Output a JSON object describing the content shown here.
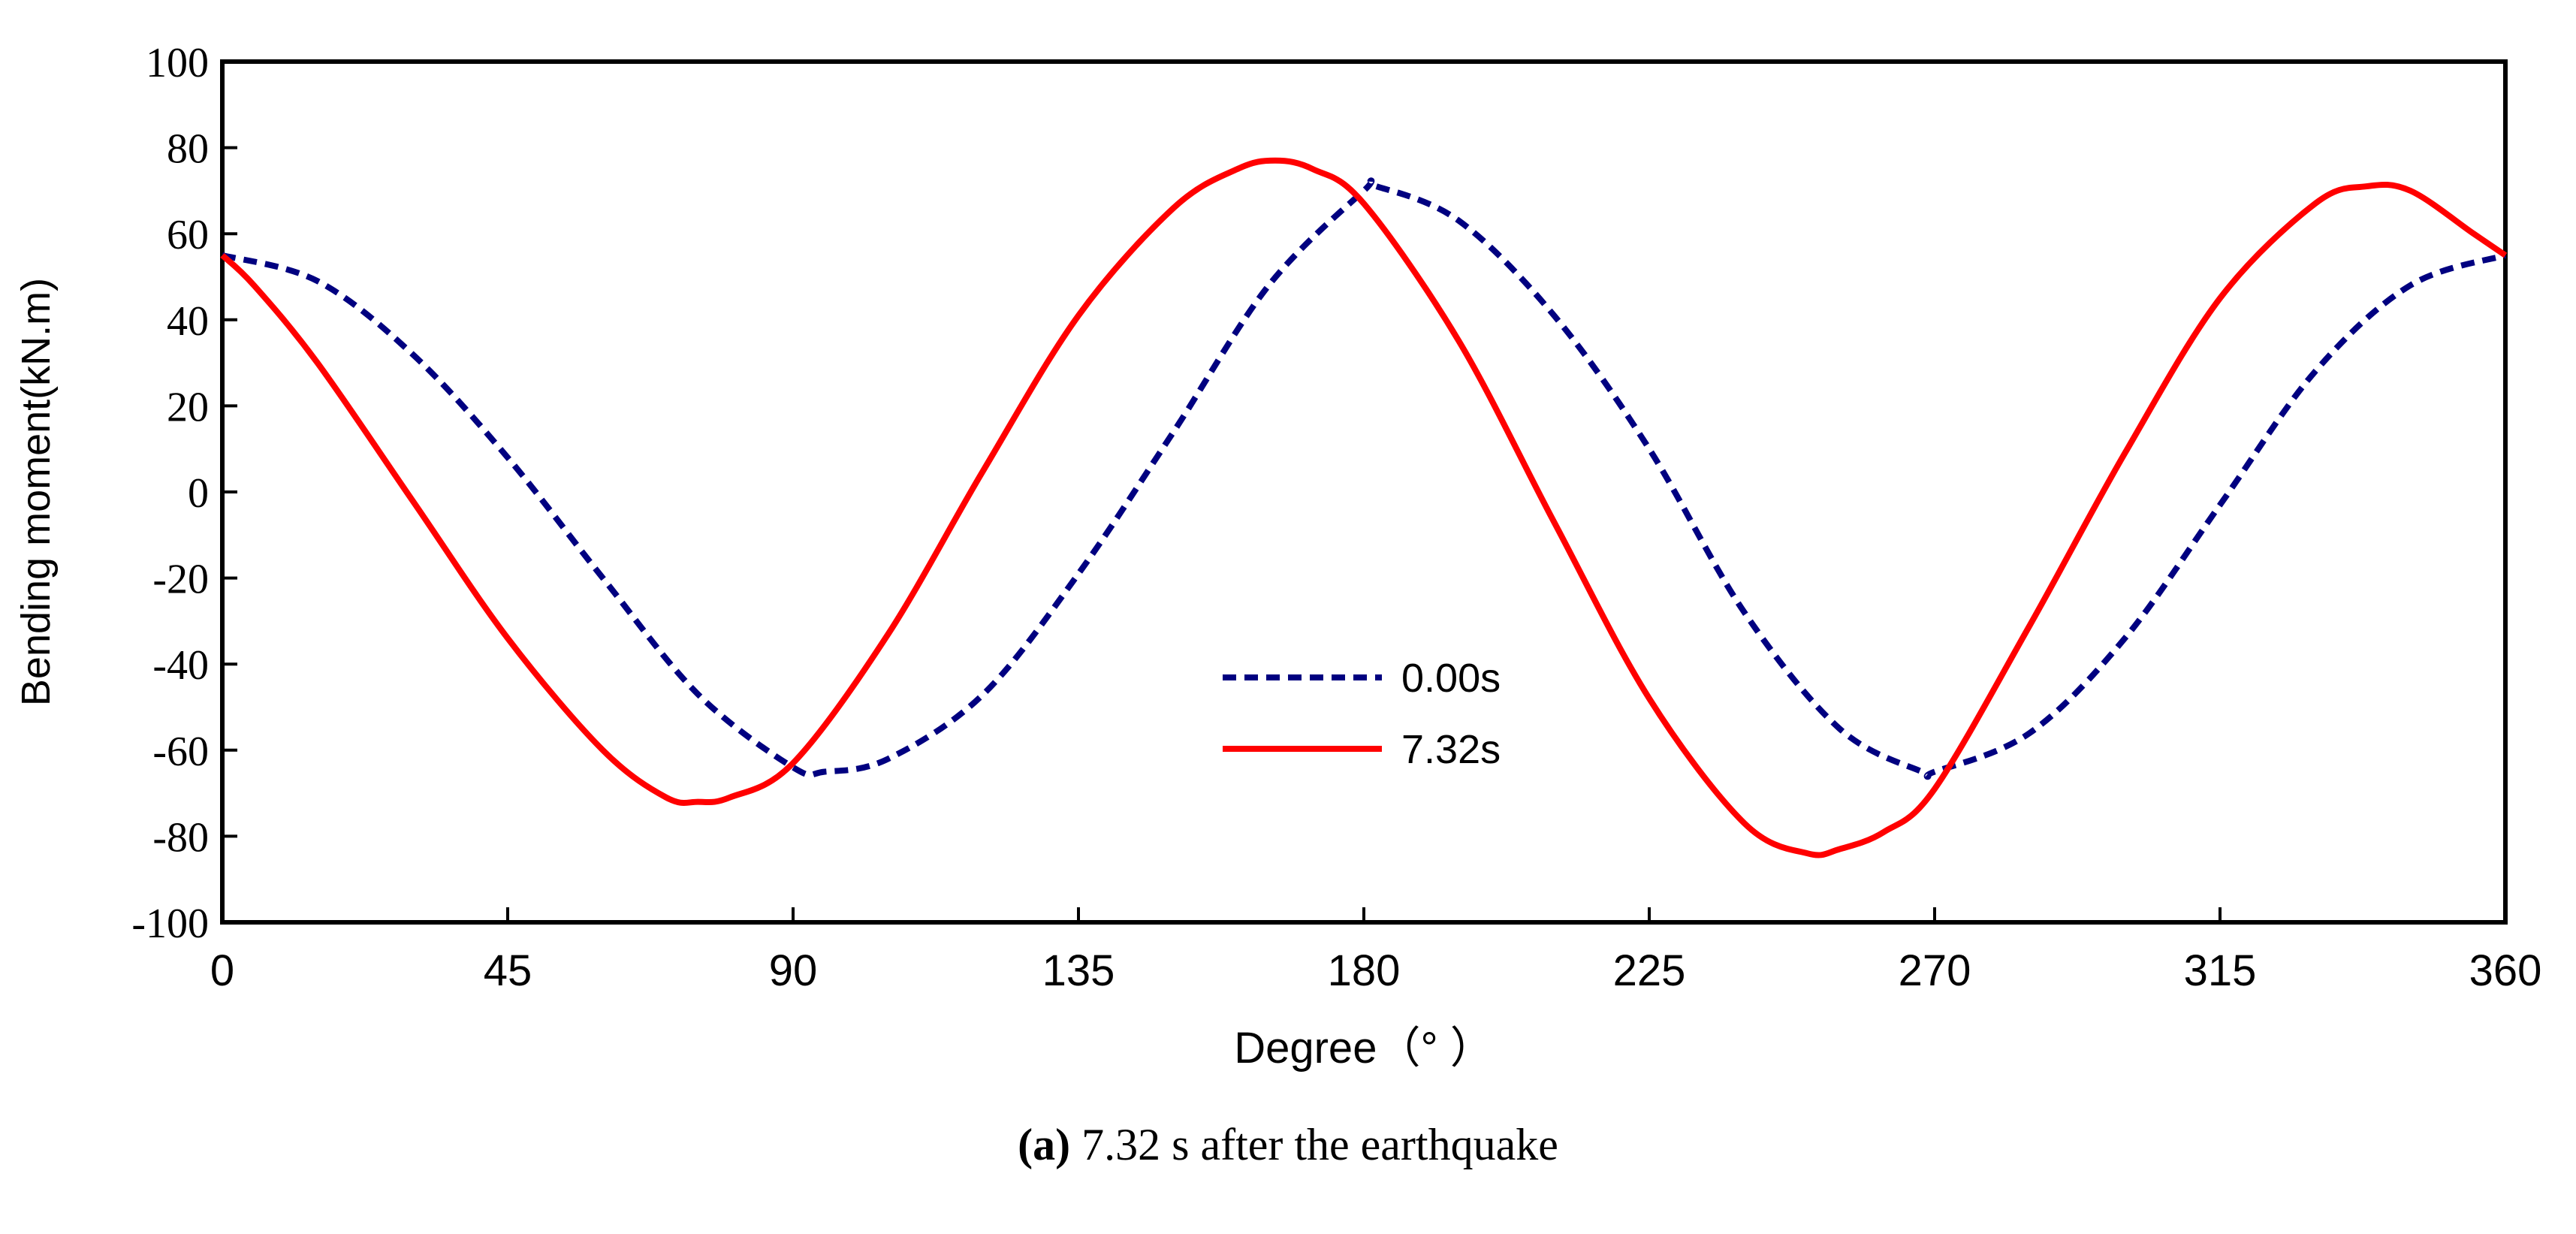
{
  "chart_data": {
    "type": "line",
    "xlabel": "Degree（° ）",
    "ylabel": "Bending moment(kN.m)",
    "xlim": [
      0,
      360
    ],
    "ylim": [
      -100,
      100
    ],
    "x_ticks": [
      "0",
      "45",
      "90",
      "135",
      "180",
      "225",
      "270",
      "315",
      "360"
    ],
    "y_ticks": [
      "100",
      "80",
      "60",
      "40",
      "20",
      "0",
      "-20",
      "-40",
      "-60",
      "-80",
      "-100"
    ],
    "grid": false,
    "legend_position": "center",
    "series": [
      {
        "name": "0.00s",
        "color": "#000080",
        "style": "dashed",
        "x": [
          0,
          15,
          30,
          45,
          60,
          75,
          90,
          95,
          105,
          120,
          135,
          150,
          165,
          180,
          182,
          195,
          210,
          225,
          240,
          255,
          268,
          270,
          285,
          300,
          315,
          330,
          345,
          360
        ],
        "y": [
          55,
          49,
          32,
          8,
          -20,
          -47,
          -64,
          -65,
          -62,
          -47,
          -19,
          14,
          48,
          70,
          71,
          63,
          41,
          10,
          -28,
          -55,
          -65,
          -65,
          -56,
          -34,
          -3,
          28,
          48,
          55
        ]
      },
      {
        "name": "7.32s",
        "color": "#ff0000",
        "style": "solid",
        "x": [
          0,
          5,
          15,
          30,
          45,
          60,
          70,
          75,
          80,
          90,
          105,
          120,
          135,
          150,
          160,
          166,
          172,
          180,
          195,
          210,
          225,
          240,
          250,
          255,
          262,
          270,
          285,
          300,
          315,
          330,
          338,
          345,
          355,
          360
        ],
        "y": [
          55,
          48,
          30,
          -2,
          -34,
          -60,
          -71,
          -72,
          -71,
          -63,
          -33,
          5,
          41,
          66,
          75,
          77,
          75,
          67,
          35,
          -7,
          -48,
          -77,
          -84,
          -83,
          -79,
          -69,
          -31,
          9,
          45,
          67,
          71,
          70,
          60,
          55
        ]
      }
    ]
  },
  "caption": {
    "label": "(a)",
    "text": " 7.32 s after the earthquake"
  }
}
